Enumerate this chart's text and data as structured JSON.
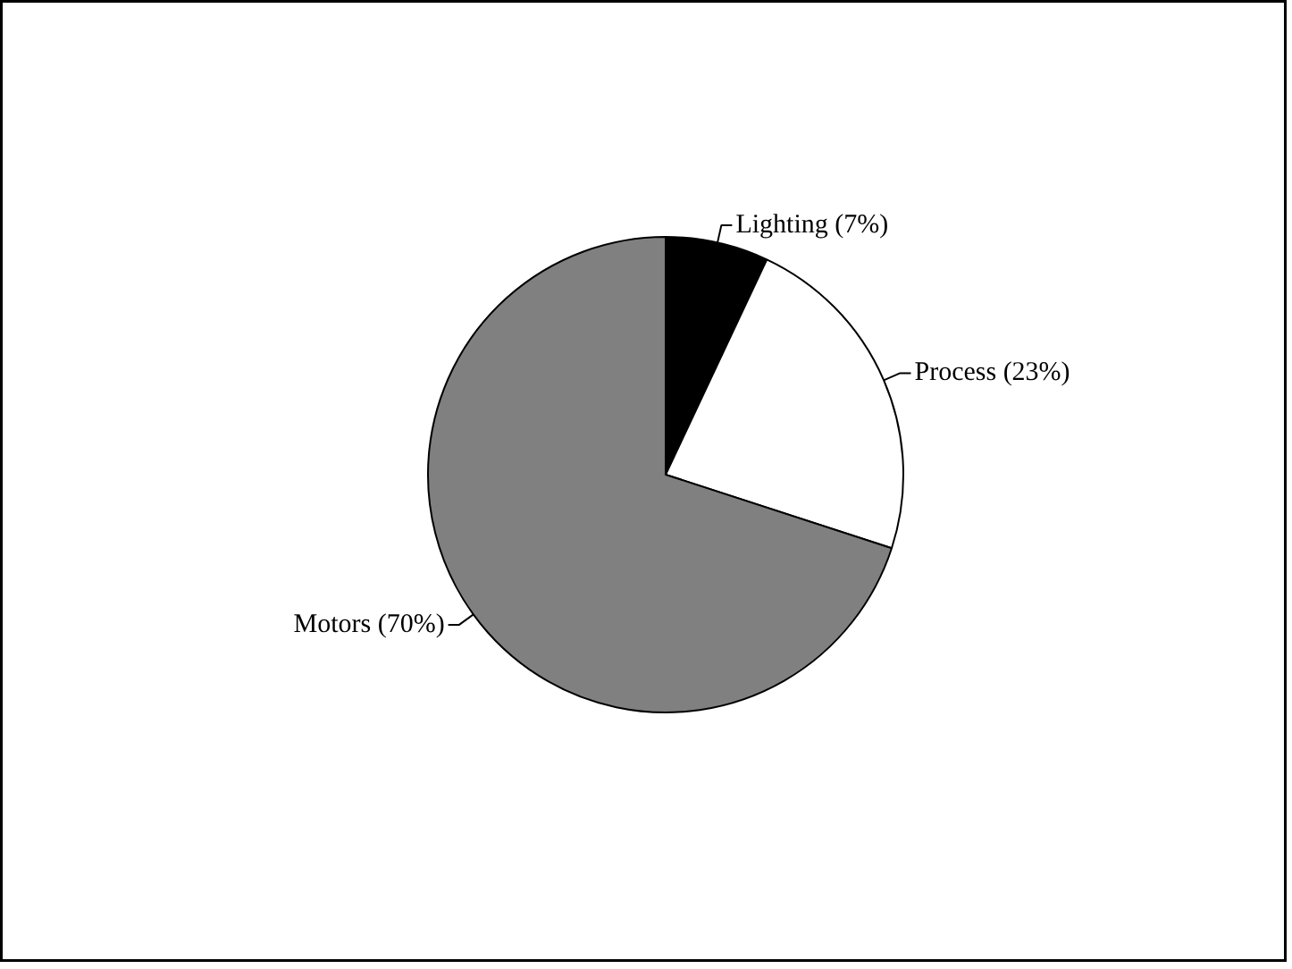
{
  "chart_data": {
    "type": "pie",
    "categories": [
      "Lighting (7%)",
      "Process (23%)",
      "Motors (70%)"
    ],
    "values": [
      7,
      23,
      70
    ],
    "colors": [
      "#000000",
      "#ffffff",
      "#808080"
    ]
  }
}
